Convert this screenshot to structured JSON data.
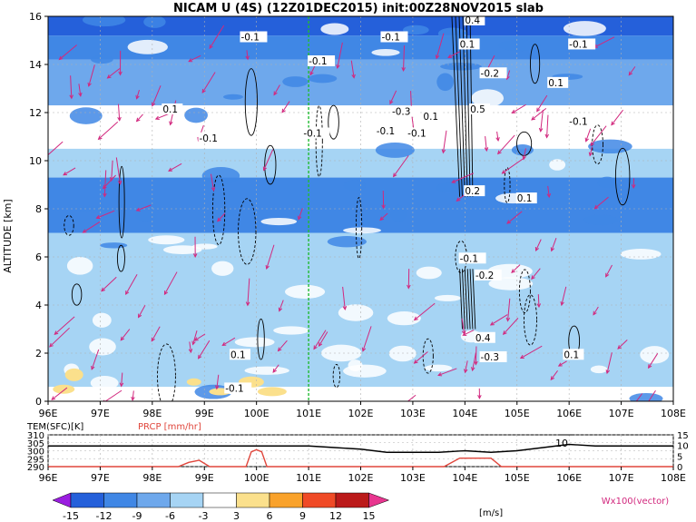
{
  "title": "NICAM U (4S) (12Z01DEC2015) init:00Z28NOV2015 slab",
  "chart_data": [
    {
      "type": "heatmap",
      "subtype": "cross-section with contours and wind vectors",
      "ylabel": "ALTITUDE [km]",
      "x_ticks": [
        "96E",
        "97E",
        "98E",
        "99E",
        "100E",
        "101E",
        "102E",
        "103E",
        "104E",
        "105E",
        "106E",
        "107E",
        "108E"
      ],
      "y_ticks": [
        "0",
        "2",
        "4",
        "6",
        "8",
        "10",
        "12",
        "14",
        "16"
      ],
      "xlim": [
        96,
        108
      ],
      "ylim": [
        0,
        16
      ],
      "grid": true,
      "marker_line_lon": 101,
      "field_bands": [
        {
          "z_from": 0.0,
          "z_to": 0.6,
          "value": -1
        },
        {
          "z_from": 0.6,
          "z_to": 6.0,
          "value": -4
        },
        {
          "z_from": 6.0,
          "z_to": 7.0,
          "value": -6
        },
        {
          "z_from": 7.0,
          "z_to": 9.3,
          "value": -10
        },
        {
          "z_from": 9.3,
          "z_to": 10.5,
          "value": -6
        },
        {
          "z_from": 10.5,
          "z_to": 12.3,
          "value": -2
        },
        {
          "z_from": 12.3,
          "z_to": 14.2,
          "value": -7
        },
        {
          "z_from": 14.2,
          "z_to": 15.2,
          "value": -10
        },
        {
          "z_from": 15.2,
          "z_to": 16.0,
          "value": -13
        }
      ],
      "contour_labels": [
        {
          "lon": 99.7,
          "z": 15.0,
          "text": "-0.1"
        },
        {
          "lon": 101.0,
          "z": 14.0,
          "text": "-0.1"
        },
        {
          "lon": 102.4,
          "z": 15.0,
          "text": "-0.1"
        },
        {
          "lon": 104.0,
          "z": 15.7,
          "text": "0.4"
        },
        {
          "lon": 103.9,
          "z": 14.7,
          "text": "0.1"
        },
        {
          "lon": 104.3,
          "z": 13.5,
          "text": "-0.2"
        },
        {
          "lon": 106.0,
          "z": 14.7,
          "text": "-0.1"
        },
        {
          "lon": 105.6,
          "z": 13.1,
          "text": "0.1"
        },
        {
          "lon": 98.2,
          "z": 12.0,
          "text": "0.1"
        },
        {
          "lon": 98.9,
          "z": 10.8,
          "text": "-0.1"
        },
        {
          "lon": 100.9,
          "z": 11.0,
          "text": "-0.1"
        },
        {
          "lon": 102.6,
          "z": 11.9,
          "text": "-0.3"
        },
        {
          "lon": 103.2,
          "z": 11.7,
          "text": "0.1"
        },
        {
          "lon": 102.9,
          "z": 11.0,
          "text": "-0.1"
        },
        {
          "lon": 102.3,
          "z": 11.1,
          "text": "-0.1"
        },
        {
          "lon": 104.1,
          "z": 12.0,
          "text": "0.5"
        },
        {
          "lon": 106.0,
          "z": 11.5,
          "text": "-0.1"
        },
        {
          "lon": 104.0,
          "z": 8.6,
          "text": "0.2"
        },
        {
          "lon": 105.0,
          "z": 8.3,
          "text": "0.1"
        },
        {
          "lon": 103.9,
          "z": 5.8,
          "text": "-0.1"
        },
        {
          "lon": 104.2,
          "z": 5.1,
          "text": "-0.2"
        },
        {
          "lon": 99.5,
          "z": 1.8,
          "text": "0.1"
        },
        {
          "lon": 99.4,
          "z": 0.4,
          "text": "-0.1"
        },
        {
          "lon": 104.2,
          "z": 2.5,
          "text": "0.4"
        },
        {
          "lon": 104.3,
          "z": 1.7,
          "text": "-0.3"
        },
        {
          "lon": 105.9,
          "z": 1.8,
          "text": "0.1"
        }
      ]
    },
    {
      "type": "line",
      "series": [
        {
          "name": "TEM(SFC)[K]",
          "color": "#000000",
          "axis": "left",
          "x": [
            96,
            97,
            98,
            99,
            100,
            101,
            101.5,
            102,
            102.5,
            103,
            103.5,
            104,
            104.5,
            105,
            105.5,
            106,
            106.5,
            107,
            108
          ],
          "values": [
            303,
            303,
            303,
            303,
            303,
            303,
            302,
            301,
            299,
            299,
            299,
            300,
            299,
            300,
            302,
            304,
            303,
            303,
            303
          ]
        },
        {
          "name": "PRCP [mm/hr]",
          "color": "#e0463c",
          "axis": "right",
          "x": [
            96,
            98.5,
            98.7,
            98.9,
            99.1,
            99.8,
            99.9,
            100.0,
            100.1,
            100.2,
            103.6,
            103.9,
            104.5,
            104.7,
            108
          ],
          "values": [
            0,
            0,
            2,
            3,
            0,
            0,
            7,
            8,
            7,
            0,
            0,
            4,
            4,
            0,
            0
          ]
        }
      ],
      "x_ticks": [
        "96E",
        "97E",
        "98E",
        "99E",
        "100E",
        "101E",
        "102E",
        "103E",
        "104E",
        "105E",
        "106E",
        "107E",
        "108E"
      ],
      "y_ticks_left": [
        "290",
        "295",
        "300",
        "305",
        "310"
      ],
      "y_ticks_right": [
        "0",
        "5",
        "10",
        "15"
      ],
      "ylim": [
        290,
        310
      ],
      "ylim_right": [
        0,
        15
      ],
      "annotation": "10"
    }
  ],
  "colorbar": {
    "labels": [
      "-15",
      "-12",
      "-9",
      "-6",
      "-3",
      "3",
      "6",
      "9",
      "12",
      "15"
    ],
    "colors": [
      "#9a1de0",
      "#2560da",
      "#4087e5",
      "#6ea8ec",
      "#a6d4f4",
      "#ffffff",
      "#fbe08c",
      "#f9a22b",
      "#f04a26",
      "#bb1a1a",
      "#e8358f"
    ],
    "unit": "[m/s]"
  },
  "vector_note": "Wx100(vector)",
  "colors": {
    "vector": "#d2287e",
    "marker_line": "#22bb33",
    "grid": "#b0b0b0"
  }
}
